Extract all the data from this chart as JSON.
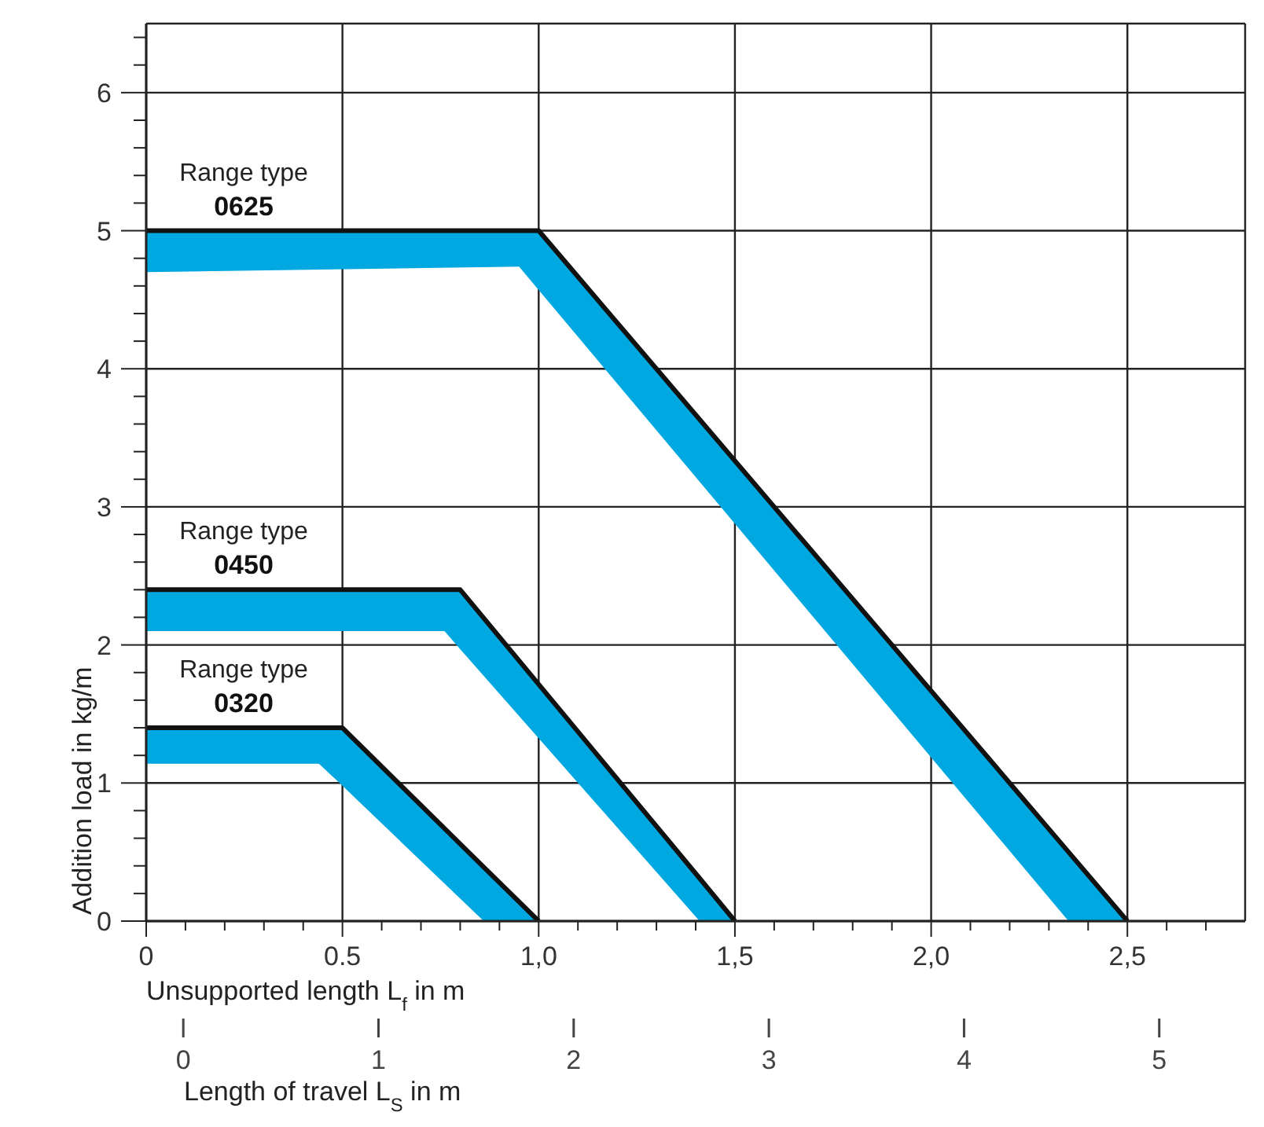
{
  "chart_data": {
    "type": "line",
    "xlabel": "Unsupported length L$_{f}$ in m",
    "ylabel": "Addition load in kg/m",
    "x2label": "Length of travel L$_{S}$ in m",
    "xlim": [
      0,
      2.8
    ],
    "ylim": [
      0,
      6.5
    ],
    "x2lim": [
      -0.19,
      5.44
    ],
    "xticks": [
      0,
      {
        "value": 0.1,
        "label": null
      },
      {
        "value": 0.2,
        "label": null
      },
      {
        "value": 0.3,
        "label": null
      },
      {
        "value": 0.4,
        "label": null
      },
      0.5,
      {
        "value": 0.6,
        "label": null
      },
      {
        "value": 0.7,
        "label": null
      },
      {
        "value": 0.8,
        "label": null
      },
      {
        "value": 0.9,
        "label": null
      },
      {
        "value": 1,
        "label": "1,0"
      },
      {
        "value": 1.1,
        "label": null
      },
      {
        "value": 1.2,
        "label": null
      },
      {
        "value": 1.3,
        "label": null
      },
      {
        "value": 1.4,
        "label": null
      },
      {
        "value": 1.5,
        "label": "1,5"
      },
      {
        "value": 1.6,
        "label": null
      },
      {
        "value": 1.7,
        "label": null
      },
      {
        "value": 1.8,
        "label": null
      },
      {
        "value": 1.9,
        "label": null
      },
      {
        "value": 2,
        "label": "2,0"
      },
      {
        "value": 2.1,
        "label": null
      },
      {
        "value": 2.2,
        "label": null
      },
      {
        "value": 2.3,
        "label": null
      },
      {
        "value": 2.4,
        "label": null
      },
      {
        "value": 2.5,
        "label": "2,5"
      },
      {
        "value": 2.6,
        "label": null
      },
      {
        "value": 2.7,
        "label": null
      }
    ],
    "yticks": [
      0,
      {
        "value": 0.2,
        "label": null
      },
      {
        "value": 0.4,
        "label": null
      },
      {
        "value": 0.6,
        "label": null
      },
      {
        "value": 0.8,
        "label": null
      },
      1,
      {
        "value": 1.2,
        "label": null
      },
      {
        "value": 1.4,
        "label": null
      },
      {
        "value": 1.6,
        "label": null
      },
      {
        "value": 1.8,
        "label": null
      },
      2,
      {
        "value": 2.2,
        "label": null
      },
      {
        "value": 2.4,
        "label": null
      },
      {
        "value": 2.6,
        "label": null
      },
      {
        "value": 2.8,
        "label": null
      },
      3,
      {
        "value": 3.2,
        "label": null
      },
      {
        "value": 3.4,
        "label": null
      },
      {
        "value": 3.6,
        "label": null
      },
      {
        "value": 3.8,
        "label": null
      },
      4,
      {
        "value": 4.2,
        "label": null
      },
      {
        "value": 4.4,
        "label": null
      },
      {
        "value": 4.6,
        "label": null
      },
      {
        "value": 4.8,
        "label": null
      },
      5,
      {
        "value": 5.2,
        "label": null
      },
      {
        "value": 5.4,
        "label": null
      },
      {
        "value": 5.6,
        "label": null
      },
      {
        "value": 5.8,
        "label": null
      },
      6,
      {
        "value": 6.2,
        "label": null
      },
      {
        "value": 6.4,
        "label": null
      }
    ],
    "x2ticks": [
      0,
      1,
      2,
      3,
      4,
      5
    ],
    "grid": true,
    "legend": false,
    "marker": "none",
    "line_style": "solid",
    "series": [
      {
        "name": "Range type 0625",
        "color": "#111111",
        "x": [
          0,
          0.95,
          1.0,
          2.35,
          2.5
        ],
        "values": [
          5,
          5,
          5,
          0.5,
          0
        ],
        "lower": [
          4.7,
          4.74,
          4.57,
          0,
          0
        ],
        "upper": [
          5,
          5,
          5,
          0.5,
          0
        ]
      },
      {
        "name": "Range type 0450",
        "color": "#111111",
        "x": [
          0,
          0.76,
          0.8,
          1.41,
          1.5
        ],
        "values": [
          2.4,
          2.4,
          2.4,
          0.31,
          0
        ],
        "lower": [
          2.1,
          2.1,
          1.97,
          0,
          0
        ],
        "upper": [
          2.4,
          2.4,
          2.4,
          0.31,
          0
        ]
      },
      {
        "name": "Range type 0320",
        "color": "#111111",
        "x": [
          0,
          0.44,
          0.5,
          0.86,
          1.0
        ],
        "values": [
          1.4,
          1.4,
          1.4,
          0.39,
          0
        ],
        "lower": [
          1.14,
          1.14,
          0.98,
          0,
          0
        ],
        "upper": [
          1.4,
          1.4,
          1.4,
          0.39,
          0
        ]
      }
    ]
  }
}
